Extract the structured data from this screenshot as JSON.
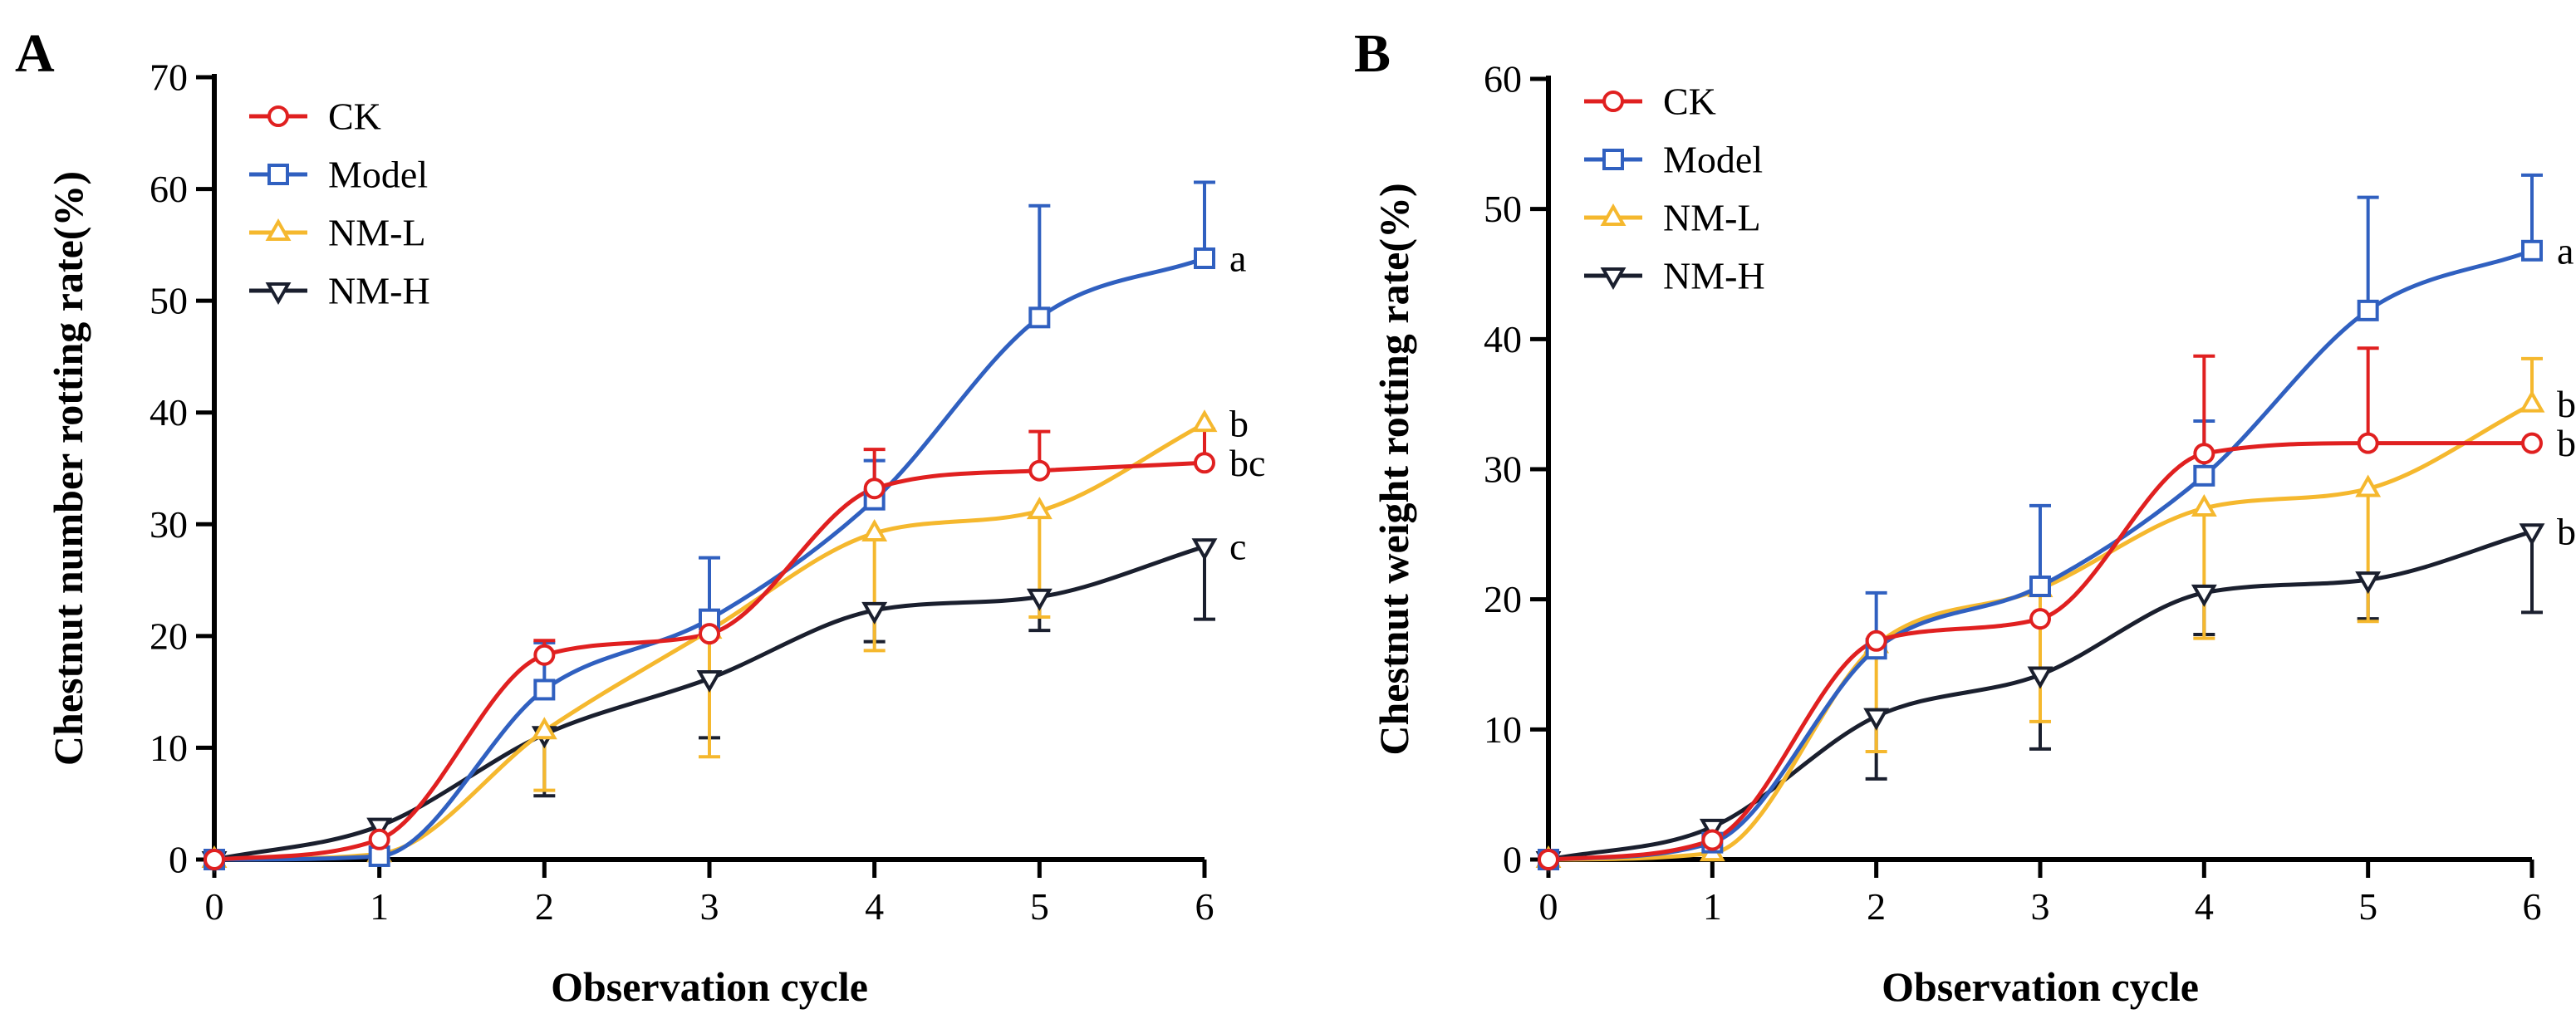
{
  "chart_data": [
    {
      "type": "line",
      "panel_label": "A",
      "xlabel": "Observation cycle",
      "ylabel": "Chestnut number rotting rate(%)",
      "x": [
        0,
        1,
        2,
        3,
        4,
        5,
        6
      ],
      "xlim": [
        0,
        6
      ],
      "ylim": [
        0,
        70
      ],
      "xticks": [
        "0",
        "1",
        "2",
        "3",
        "4",
        "5",
        "6"
      ],
      "yticks": [
        "0",
        "10",
        "20",
        "30",
        "40",
        "50",
        "60",
        "70"
      ],
      "grid": false,
      "legend_position": "top-left",
      "series": [
        {
          "name": "CK",
          "marker": "circle",
          "color": "#e02020",
          "values": [
            0,
            1.8,
            18.3,
            20.2,
            33.2,
            34.8,
            35.5
          ],
          "err_up": [
            0,
            0,
            1.3,
            0,
            3.5,
            3.5,
            3.0
          ],
          "err_down": [
            0,
            0,
            0,
            0,
            0,
            0,
            0
          ],
          "label": "bc"
        },
        {
          "name": "Model",
          "marker": "square",
          "color": "#3060c0",
          "values": [
            0,
            0.3,
            15.2,
            21.5,
            32.2,
            48.5,
            53.8
          ],
          "err_up": [
            0,
            0,
            4.2,
            5.5,
            3.5,
            10.0,
            6.8
          ],
          "err_down": [
            0,
            0,
            0,
            0,
            0,
            0,
            0
          ],
          "label": "a"
        },
        {
          "name": "NM-L",
          "marker": "triangle-up",
          "color": "#f5b82e",
          "values": [
            0,
            0.5,
            11.5,
            20.5,
            29.2,
            31.2,
            39.0
          ],
          "err_up": [
            0,
            0,
            0,
            0,
            0,
            0,
            0
          ],
          "err_down": [
            0,
            0,
            5.3,
            11.3,
            10.5,
            9.5,
            0
          ],
          "label": "b"
        },
        {
          "name": "NM-H",
          "marker": "triangle-down",
          "color": "#1a1f2e",
          "values": [
            0,
            3.0,
            11.2,
            16.2,
            22.3,
            23.5,
            28.0
          ],
          "err_up": [
            0,
            0,
            0,
            0,
            0,
            0,
            0
          ],
          "err_down": [
            0,
            0,
            5.5,
            5.3,
            2.8,
            3.0,
            6.5
          ],
          "label": "c"
        }
      ]
    },
    {
      "type": "line",
      "panel_label": "B",
      "xlabel": "Observation cycle",
      "ylabel": "Chestnut weight rotting rate(%)",
      "x": [
        0,
        1,
        2,
        3,
        4,
        5,
        6
      ],
      "xlim": [
        0,
        6
      ],
      "ylim": [
        0,
        60
      ],
      "xticks": [
        "0",
        "1",
        "2",
        "3",
        "4",
        "5",
        "6"
      ],
      "yticks": [
        "0",
        "10",
        "20",
        "30",
        "40",
        "50",
        "60"
      ],
      "grid": false,
      "legend_position": "top-left",
      "series": [
        {
          "name": "CK",
          "marker": "circle",
          "color": "#e02020",
          "values": [
            0,
            1.5,
            16.8,
            18.5,
            31.2,
            32.0,
            32.0
          ],
          "err_up": [
            0,
            0,
            0,
            0,
            7.5,
            7.3,
            0
          ],
          "err_down": [
            0,
            0,
            0,
            0,
            0,
            0,
            0
          ],
          "label": "b"
        },
        {
          "name": "Model",
          "marker": "square",
          "color": "#3060c0",
          "values": [
            0,
            1.3,
            16.2,
            21.0,
            29.5,
            42.2,
            46.8
          ],
          "err_up": [
            0,
            0,
            4.3,
            6.2,
            4.2,
            8.7,
            5.8
          ],
          "err_down": [
            0,
            0,
            0,
            0,
            0,
            0,
            0
          ],
          "label": "a"
        },
        {
          "name": "NM-L",
          "marker": "triangle-up",
          "color": "#f5b82e",
          "values": [
            0,
            0.5,
            16.5,
            20.8,
            27.0,
            28.5,
            35.0
          ],
          "err_up": [
            0,
            0,
            0,
            0,
            0,
            0,
            3.5
          ],
          "err_down": [
            0,
            0,
            8.2,
            10.2,
            10.0,
            10.2,
            0
          ],
          "label": "b"
        },
        {
          "name": "NM-H",
          "marker": "triangle-down",
          "color": "#1a1f2e",
          "values": [
            0,
            2.5,
            11.0,
            14.2,
            20.5,
            21.5,
            25.2
          ],
          "err_up": [
            0,
            0,
            0,
            0,
            0,
            0,
            0
          ],
          "err_down": [
            0,
            0,
            4.8,
            5.7,
            3.2,
            3.0,
            6.2
          ],
          "label": "b"
        }
      ]
    }
  ]
}
